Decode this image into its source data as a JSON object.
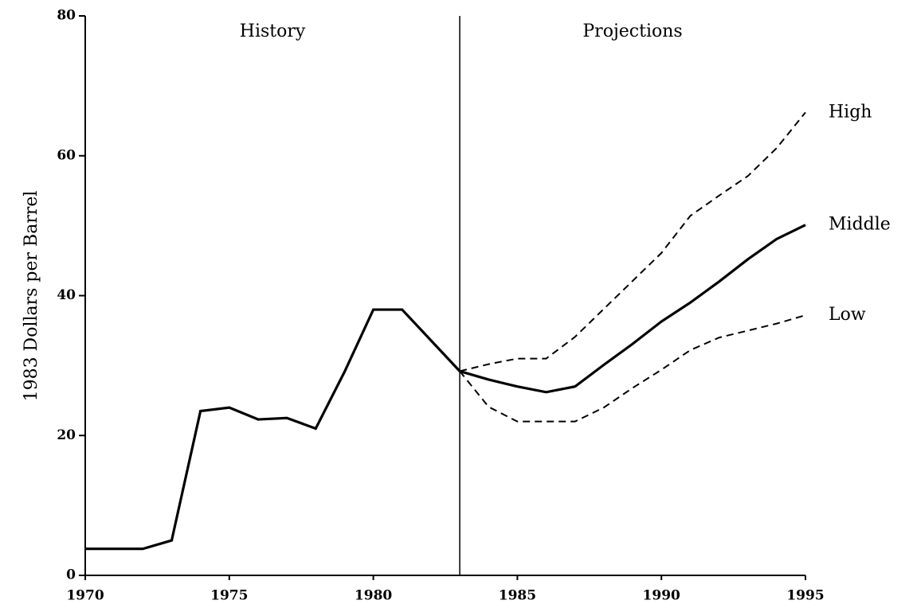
{
  "chart_data": {
    "type": "line",
    "y_label": "1983 Dollars per Barrel",
    "annotations": [
      "History",
      "Projections"
    ],
    "divider_x": 1983,
    "x": [
      1970,
      1971,
      1972,
      1973,
      1974,
      1975,
      1976,
      1977,
      1978,
      1979,
      1980,
      1981,
      1982,
      1983,
      1984,
      1985,
      1986,
      1987,
      1988,
      1989,
      1990,
      1991,
      1992,
      1993,
      1994,
      1995
    ],
    "series": [
      {
        "name": "High",
        "color": "#000000",
        "dashed": true,
        "values": [
          null,
          null,
          null,
          null,
          null,
          null,
          null,
          null,
          null,
          null,
          null,
          null,
          null,
          29.2,
          30.2,
          31,
          31,
          34.1,
          38.1,
          42.1,
          46.1,
          51.4,
          54.3,
          57.1,
          61.1,
          66.2
        ]
      },
      {
        "name": "Middle",
        "color": "#000000",
        "dashed": false,
        "values": [
          3.8,
          3.8,
          3.8,
          5.0,
          23.5,
          24.0,
          22.3,
          22.5,
          21.0,
          29.1,
          38.0,
          38.0,
          33.6,
          29.2,
          28.0,
          27.0,
          26.2,
          27.0,
          30.1,
          33.1,
          36.3,
          39.0,
          42.0,
          45.2,
          48.1,
          50.1
        ]
      },
      {
        "name": "Low",
        "color": "#000000",
        "dashed": true,
        "values": [
          null,
          null,
          null,
          null,
          null,
          null,
          null,
          null,
          null,
          null,
          null,
          null,
          null,
          29.2,
          24.1,
          22.0,
          22.0,
          22.0,
          24.0,
          26.8,
          29.4,
          32.2,
          34.0,
          35.0,
          36.0,
          37.2
        ]
      }
    ],
    "xlim": [
      1970,
      1995
    ],
    "xticks": [
      1970,
      1975,
      1980,
      1985,
      1990,
      1995
    ],
    "ylim": [
      0,
      80
    ],
    "yticks": [
      0,
      20,
      40,
      60,
      80
    ]
  }
}
